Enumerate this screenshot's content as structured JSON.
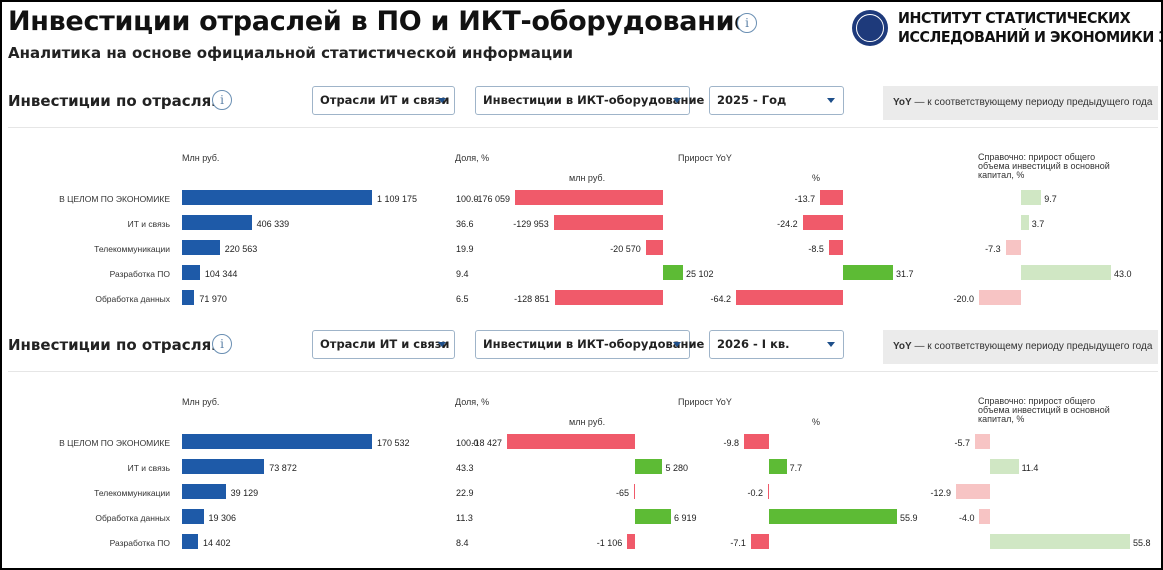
{
  "header": {
    "title": "Инвестиции отраслей в ПО и ИКТ-оборудование",
    "subtitle": "Аналитика на основе официальной статистической информации",
    "info_glyph": "i"
  },
  "logo": {
    "line1": "ИНСТИТУТ СТАТИСТИЧЕСКИХ",
    "line2": "ИССЛЕДОВАНИЙ И ЭКОНОМИКИ ЗНАНИЙ",
    "seal_icon": "hse-seal-icon"
  },
  "colors": {
    "bar_volume": "#1e5aa8",
    "negative": "#f05a6a",
    "positive": "#5dbb35",
    "ref_negative": "#f7c4c4",
    "ref_positive": "#d0e7c4"
  },
  "sections": [
    {
      "title": "Инвестиции по отраслям",
      "filters": {
        "industry": "Отрасли ИТ и связи",
        "investment_type": "Инвестиции в ИКТ-оборудование",
        "period": "2025 - Год"
      },
      "note_bold": "YoY",
      "note_text": " — к соответствующему периоду предыдущего года",
      "columns": {
        "volume": "Млн руб.",
        "share": "Доля, %",
        "growth": "Прирост YoY",
        "growth_rub": "млн руб.",
        "growth_pct": "%",
        "reference": "Справочно: прирост общего объема инвестиций в основной капитал, %"
      },
      "rows": [
        {
          "category": "В ЦЕЛОМ ПО ЭКОНОМИКЕ",
          "volume": 1109175,
          "volume_label": "1 109 175",
          "share": "100.0",
          "yoy_rub": -176059,
          "yoy_rub_label": "-176 059",
          "yoy_pct": -13.7,
          "yoy_pct_label": "-13.7",
          "ref": 9.7,
          "ref_label": "9.7"
        },
        {
          "category": "ИТ и связь",
          "volume": 406339,
          "volume_label": "406 339",
          "share": "36.6",
          "yoy_rub": -129953,
          "yoy_rub_label": "-129 953",
          "yoy_pct": -24.2,
          "yoy_pct_label": "-24.2",
          "ref": 3.7,
          "ref_label": "3.7"
        },
        {
          "category": "Телекоммуникации",
          "volume": 220563,
          "volume_label": "220 563",
          "share": "19.9",
          "yoy_rub": -20570,
          "yoy_rub_label": "-20 570",
          "yoy_pct": -8.5,
          "yoy_pct_label": "-8.5",
          "ref": -7.3,
          "ref_label": "-7.3"
        },
        {
          "category": "Разработка ПО",
          "volume": 104344,
          "volume_label": "104 344",
          "share": "9.4",
          "yoy_rub": 25102,
          "yoy_rub_label": "25 102",
          "yoy_pct": 31.7,
          "yoy_pct_label": "31.7",
          "ref": 43.0,
          "ref_label": "43.0"
        },
        {
          "category": "Обработка данных",
          "volume": 71970,
          "volume_label": "71 970",
          "share": "6.5",
          "yoy_rub": -128851,
          "yoy_rub_label": "-128 851",
          "yoy_pct": -64.2,
          "yoy_pct_label": "-64.2",
          "ref": -20.0,
          "ref_label": "-20.0"
        }
      ]
    },
    {
      "title": "Инвестиции по отраслям",
      "filters": {
        "industry": "Отрасли ИТ и связи",
        "investment_type": "Инвестиции в ИКТ-оборудование",
        "period": "2026 - I кв."
      },
      "note_bold": "YoY",
      "note_text": " — к соответствующему периоду предыдущего года",
      "columns": {
        "volume": "Млн руб.",
        "share": "Доля, %",
        "growth": "Прирост YoY",
        "growth_rub": "млн руб.",
        "growth_pct": "%",
        "reference": "Справочно: прирост общего объема инвестиций в основной капитал, %"
      },
      "rows": [
        {
          "category": "В ЦЕЛОМ ПО ЭКОНОМИКЕ",
          "volume": 170532,
          "volume_label": "170 532",
          "share": "100.0",
          "yoy_rub": -18427,
          "yoy_rub_label": "-18 427",
          "yoy_pct": -9.8,
          "yoy_pct_label": "-9.8",
          "ref": -5.7,
          "ref_label": "-5.7"
        },
        {
          "category": "ИТ и связь",
          "volume": 73872,
          "volume_label": "73 872",
          "share": "43.3",
          "yoy_rub": 5280,
          "yoy_rub_label": "5 280",
          "yoy_pct": 7.7,
          "yoy_pct_label": "7.7",
          "ref": 11.4,
          "ref_label": "11.4"
        },
        {
          "category": "Телекоммуникации",
          "volume": 39129,
          "volume_label": "39 129",
          "share": "22.9",
          "yoy_rub": -65,
          "yoy_rub_label": "-65",
          "yoy_pct": -0.2,
          "yoy_pct_label": "-0.2",
          "ref": -12.9,
          "ref_label": "-12.9"
        },
        {
          "category": "Обработка данных",
          "volume": 19306,
          "volume_label": "19 306",
          "share": "11.3",
          "yoy_rub": 6919,
          "yoy_rub_label": "6 919",
          "yoy_pct": 55.9,
          "yoy_pct_label": "55.9",
          "ref": -4.0,
          "ref_label": "-4.0"
        },
        {
          "category": "Разработка ПО",
          "volume": 14402,
          "volume_label": "14 402",
          "share": "8.4",
          "yoy_rub": -1106,
          "yoy_rub_label": "-1 106",
          "yoy_pct": -7.1,
          "yoy_pct_label": "-7.1",
          "ref": 55.8,
          "ref_label": "55.8"
        }
      ]
    }
  ]
}
